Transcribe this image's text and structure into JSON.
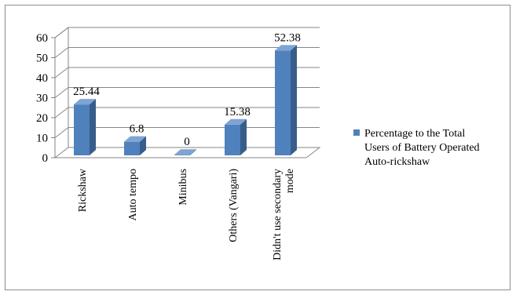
{
  "chart_data": {
    "type": "bar",
    "style": "3d-column",
    "categories": [
      "Rickshaw",
      "Auto tempo",
      "Minibus",
      "Others (Vangari)",
      "Didn't use secondary mode"
    ],
    "category_lines": [
      [
        "Rickshaw"
      ],
      [
        "Auto tempo"
      ],
      [
        "Minibus"
      ],
      [
        "Others (Vangari)"
      ],
      [
        "Didn't use secondary",
        "mode"
      ]
    ],
    "series": [
      {
        "name": "Percentage to the Total Users of Battery Operated Auto-rickshaw",
        "values": [
          25.44,
          6.8,
          0,
          15.38,
          52.38
        ],
        "value_labels": [
          "25.44",
          "6.8",
          "0",
          "15.38",
          "52.38"
        ],
        "color": "#4f81bd"
      }
    ],
    "legend_lines": [
      "Percentage to the Total",
      "Users of Battery Operated",
      "Auto-rickshaw"
    ],
    "ylim": [
      0,
      60
    ],
    "yticks": [
      "0",
      "10",
      "20",
      "30",
      "40",
      "50",
      "60"
    ],
    "grid": true,
    "legend_position": "right",
    "title": "",
    "xlabel": "",
    "ylabel": ""
  },
  "colors": {
    "bar_front": "#4f81bd",
    "bar_side": "#385d8a",
    "bar_top": "#7fa3d3",
    "grid": "#868686",
    "axis": "#868686"
  }
}
